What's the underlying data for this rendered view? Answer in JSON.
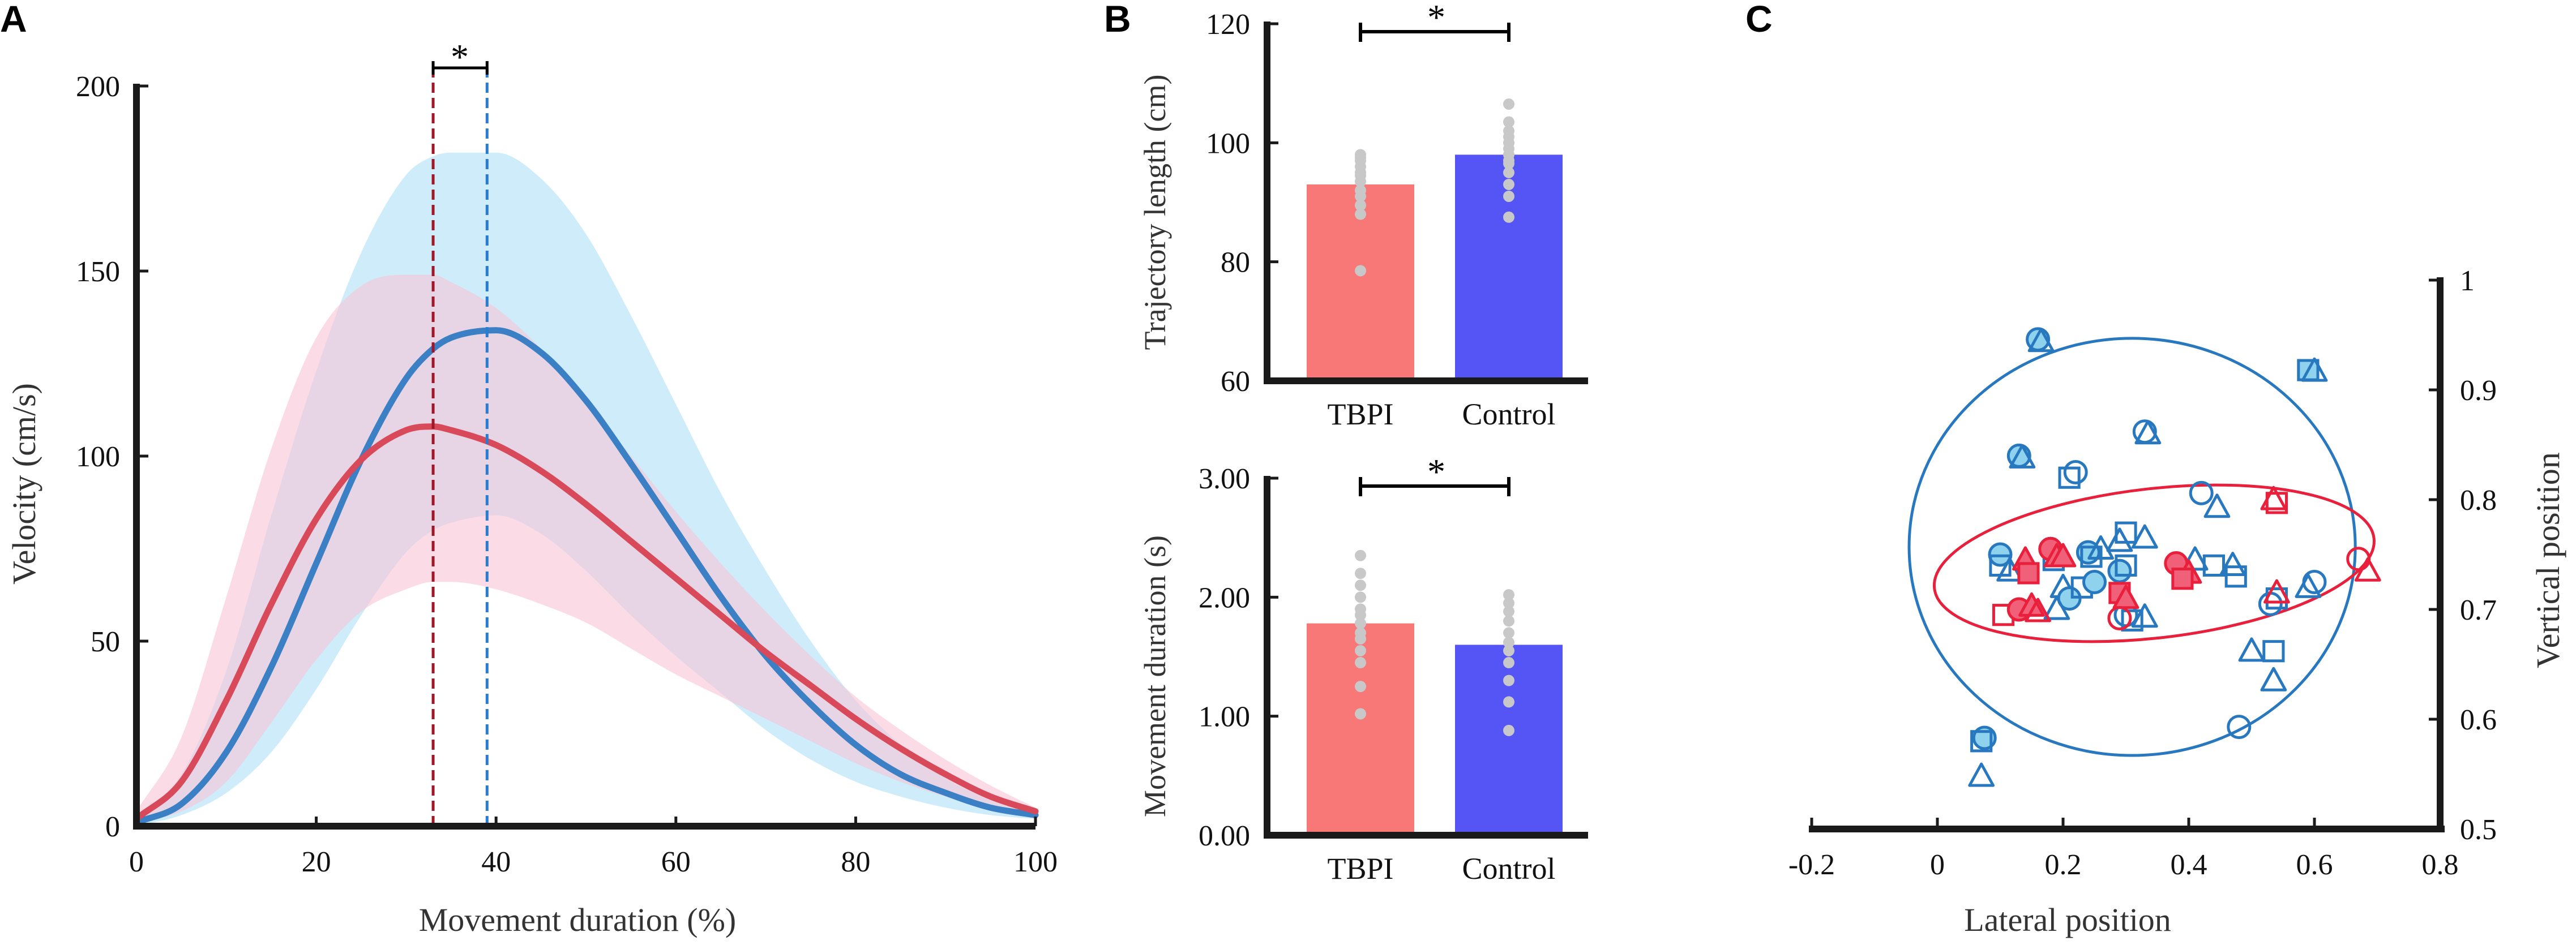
{
  "colors": {
    "tbpi_line": "#d84a5a",
    "control_line": "#3b7fc4",
    "tbpi_band": "#f8c4d6",
    "control_band": "#aee0f5",
    "overlap_band": "#d2c4e6",
    "tbpi_bar": "#f87878",
    "control_bar": "#5555f5",
    "dot": "#c8c8c8",
    "tbpi_marker": "#e8203c",
    "tbpi_fill": "#f06078",
    "control_marker": "#2878c0",
    "control_fill": "#8ed2ee",
    "tbpi_vline": "#a01828",
    "control_vline": "#2a7cd0"
  },
  "chart_data": [
    {
      "panel": "A",
      "type": "line",
      "xlabel": "Movement duration (%)",
      "ylabel": "Velocity (cm/s)",
      "xlim": [
        0,
        100
      ],
      "ylim": [
        0,
        200
      ],
      "xticks": [
        "0",
        "20",
        "40",
        "60",
        "80",
        "100"
      ],
      "yticks": [
        "0",
        "50",
        "100",
        "150",
        "200"
      ],
      "x": [
        0,
        5,
        10,
        15,
        20,
        25,
        30,
        33,
        35,
        40,
        45,
        50,
        55,
        60,
        65,
        70,
        75,
        80,
        85,
        90,
        95,
        100
      ],
      "series": [
        {
          "name": "TBPI",
          "mean": [
            2,
            12,
            34,
            60,
            83,
            99,
            107,
            108,
            107,
            103,
            96,
            87,
            77,
            67,
            57,
            47,
            38,
            29,
            21,
            14,
            8,
            4
          ],
          "upper": [
            4,
            24,
            62,
            102,
            132,
            146,
            149,
            149,
            147,
            140,
            129,
            115,
            100,
            85,
            71,
            58,
            46,
            35,
            26,
            18,
            11,
            5
          ],
          "lower": [
            1,
            4,
            12,
            28,
            45,
            58,
            64,
            66,
            66,
            64,
            60,
            55,
            48,
            41,
            35,
            29,
            23,
            17,
            12,
            8,
            5,
            3
          ]
        },
        {
          "name": "Control",
          "mean": [
            1,
            6,
            20,
            43,
            71,
            99,
            121,
            129,
            132,
            134,
            128,
            115,
            98,
            80,
            62,
            46,
            33,
            22,
            14,
            9,
            5,
            3
          ],
          "upper": [
            3,
            14,
            42,
            84,
            123,
            155,
            176,
            181,
            182,
            182,
            175,
            160,
            138,
            114,
            90,
            69,
            50,
            34,
            22,
            13,
            7,
            3
          ],
          "lower": [
            0,
            3,
            9,
            20,
            37,
            57,
            74,
            80,
            82,
            84,
            79,
            69,
            57,
            46,
            36,
            26,
            18,
            12,
            8,
            5,
            3,
            2
          ]
        }
      ],
      "peaks": {
        "tbpi_x": 33,
        "control_x": 39
      },
      "significance": "*"
    },
    {
      "panel": "B-top",
      "type": "bar",
      "categories": [
        "TBPI",
        "Control"
      ],
      "values": [
        93,
        98
      ],
      "ylabel": "Trajectory length (cm)",
      "ylim": [
        60,
        120
      ],
      "yticks": [
        "60",
        "80",
        "100",
        "120"
      ],
      "points": [
        [
          78.5,
          88,
          89.5,
          91,
          92,
          93.5,
          94.5,
          95,
          96,
          97,
          97.5,
          98
        ],
        [
          87.5,
          91,
          93,
          95,
          96.5,
          97,
          98,
          99,
          100,
          101,
          102,
          103.5,
          106.5
        ]
      ],
      "significance": "*"
    },
    {
      "panel": "B-bottom",
      "type": "bar",
      "categories": [
        "TBPI",
        "Control"
      ],
      "values": [
        1.78,
        1.6
      ],
      "ylabel": "Movement duration (s)",
      "ylim": [
        0,
        3
      ],
      "yticks": [
        "0.00",
        "1.00",
        "2.00",
        "3.00"
      ],
      "points": [
        [
          1.02,
          1.25,
          1.45,
          1.55,
          1.65,
          1.7,
          1.78,
          1.85,
          1.9,
          2.0,
          2.1,
          2.2,
          2.35
        ],
        [
          0.88,
          1.12,
          1.3,
          1.45,
          1.55,
          1.62,
          1.7,
          1.8,
          1.88,
          1.95,
          2.02
        ]
      ],
      "significance": "*"
    },
    {
      "panel": "C",
      "type": "scatter",
      "xlabel": "Lateral position",
      "ylabel": "Vertical position",
      "xlim": [
        -0.2,
        0.8
      ],
      "ylim": [
        0.5,
        1.0
      ],
      "xticks": [
        "-0.2",
        "0",
        "0.2",
        "0.4",
        "0.6",
        "0.8"
      ],
      "yticks": [
        "0.5",
        "0.6",
        "0.7",
        "0.8",
        "0.9",
        "1"
      ],
      "groups": [
        {
          "name": "Control",
          "ellipse": {
            "cx": 0.31,
            "cy": 0.757,
            "rx": 0.355,
            "ry": 0.19,
            "angle": 0
          },
          "points": [
            {
              "x": 0.16,
              "y": 0.946,
              "m": "circle",
              "f": true
            },
            {
              "x": 0.165,
              "y": 0.944,
              "m": "triangle",
              "f": false
            },
            {
              "x": 0.59,
              "y": 0.918,
              "m": "square",
              "f": true
            },
            {
              "x": 0.6,
              "y": 0.917,
              "m": "triangle",
              "f": false
            },
            {
              "x": 0.13,
              "y": 0.84,
              "m": "circle",
              "f": true
            },
            {
              "x": 0.135,
              "y": 0.838,
              "m": "triangle",
              "f": false
            },
            {
              "x": 0.22,
              "y": 0.825,
              "m": "circle",
              "f": false
            },
            {
              "x": 0.21,
              "y": 0.82,
              "m": "square",
              "f": false
            },
            {
              "x": 0.33,
              "y": 0.862,
              "m": "circle",
              "f": false
            },
            {
              "x": 0.335,
              "y": 0.86,
              "m": "triangle",
              "f": false
            },
            {
              "x": 0.42,
              "y": 0.806,
              "m": "circle",
              "f": false
            },
            {
              "x": 0.445,
              "y": 0.793,
              "m": "triangle",
              "f": false
            },
            {
              "x": 0.1,
              "y": 0.75,
              "m": "circle",
              "f": true
            },
            {
              "x": 0.1,
              "y": 0.74,
              "m": "square",
              "f": false
            },
            {
              "x": 0.115,
              "y": 0.735,
              "m": "triangle",
              "f": false
            },
            {
              "x": 0.18,
              "y": 0.755,
              "m": "circle",
              "f": true
            },
            {
              "x": 0.185,
              "y": 0.745,
              "m": "square",
              "f": false
            },
            {
              "x": 0.24,
              "y": 0.752,
              "m": "circle",
              "f": true
            },
            {
              "x": 0.245,
              "y": 0.748,
              "m": "square",
              "f": false
            },
            {
              "x": 0.26,
              "y": 0.755,
              "m": "triangle",
              "f": false
            },
            {
              "x": 0.29,
              "y": 0.762,
              "m": "triangle",
              "f": false
            },
            {
              "x": 0.3,
              "y": 0.77,
              "m": "square",
              "f": false
            },
            {
              "x": 0.33,
              "y": 0.765,
              "m": "triangle",
              "f": false
            },
            {
              "x": 0.29,
              "y": 0.735,
              "m": "circle",
              "f": true
            },
            {
              "x": 0.3,
              "y": 0.74,
              "m": "square",
              "f": false
            },
            {
              "x": 0.2,
              "y": 0.72,
              "m": "triangle",
              "f": false
            },
            {
              "x": 0.21,
              "y": 0.71,
              "m": "circle",
              "f": true
            },
            {
              "x": 0.23,
              "y": 0.72,
              "m": "square",
              "f": false
            },
            {
              "x": 0.25,
              "y": 0.725,
              "m": "circle",
              "f": true
            },
            {
              "x": 0.19,
              "y": 0.7,
              "m": "triangle",
              "f": false
            },
            {
              "x": 0.3,
              "y": 0.695,
              "m": "circle",
              "f": false
            },
            {
              "x": 0.31,
              "y": 0.69,
              "m": "square",
              "f": false
            },
            {
              "x": 0.33,
              "y": 0.693,
              "m": "triangle",
              "f": false
            },
            {
              "x": 0.41,
              "y": 0.745,
              "m": "triangle",
              "f": false
            },
            {
              "x": 0.44,
              "y": 0.74,
              "m": "square",
              "f": false
            },
            {
              "x": 0.47,
              "y": 0.74,
              "m": "triangle",
              "f": false
            },
            {
              "x": 0.475,
              "y": 0.73,
              "m": "square",
              "f": false
            },
            {
              "x": 0.6,
              "y": 0.725,
              "m": "circle",
              "f": false
            },
            {
              "x": 0.59,
              "y": 0.72,
              "m": "triangle",
              "f": false
            },
            {
              "x": 0.53,
              "y": 0.705,
              "m": "circle",
              "f": false
            },
            {
              "x": 0.54,
              "y": 0.71,
              "m": "square",
              "f": false
            },
            {
              "x": 0.5,
              "y": 0.662,
              "m": "triangle",
              "f": false
            },
            {
              "x": 0.535,
              "y": 0.662,
              "m": "square",
              "f": false
            },
            {
              "x": 0.535,
              "y": 0.635,
              "m": "triangle",
              "f": false
            },
            {
              "x": 0.48,
              "y": 0.593,
              "m": "circle",
              "f": false
            },
            {
              "x": 0.075,
              "y": 0.583,
              "m": "circle",
              "f": true
            },
            {
              "x": 0.07,
              "y": 0.58,
              "m": "square",
              "f": false
            },
            {
              "x": 0.07,
              "y": 0.548,
              "m": "triangle",
              "f": false
            }
          ]
        },
        {
          "name": "TBPI",
          "ellipse": {
            "cx": 0.345,
            "cy": 0.742,
            "rx": 0.352,
            "ry": 0.068,
            "angle": 6.5
          },
          "points": [
            {
              "x": 0.18,
              "y": 0.755,
              "m": "circle",
              "f": true
            },
            {
              "x": 0.19,
              "y": 0.748,
              "m": "triangle",
              "f": true
            },
            {
              "x": 0.14,
              "y": 0.745,
              "m": "triangle",
              "f": true
            },
            {
              "x": 0.145,
              "y": 0.733,
              "m": "square",
              "f": true
            },
            {
              "x": 0.2,
              "y": 0.748,
              "m": "triangle",
              "f": true
            },
            {
              "x": 0.105,
              "y": 0.695,
              "m": "square",
              "f": false
            },
            {
              "x": 0.13,
              "y": 0.7,
              "m": "circle",
              "f": true
            },
            {
              "x": 0.15,
              "y": 0.703,
              "m": "triangle",
              "f": true
            },
            {
              "x": 0.16,
              "y": 0.698,
              "m": "triangle",
              "f": false
            },
            {
              "x": 0.29,
              "y": 0.715,
              "m": "square",
              "f": true
            },
            {
              "x": 0.3,
              "y": 0.71,
              "m": "triangle",
              "f": true
            },
            {
              "x": 0.29,
              "y": 0.692,
              "m": "circle",
              "f": false
            },
            {
              "x": 0.38,
              "y": 0.742,
              "m": "circle",
              "f": true
            },
            {
              "x": 0.4,
              "y": 0.733,
              "m": "triangle",
              "f": true
            },
            {
              "x": 0.39,
              "y": 0.728,
              "m": "square",
              "f": true
            },
            {
              "x": 0.535,
              "y": 0.8,
              "m": "triangle",
              "f": false
            },
            {
              "x": 0.54,
              "y": 0.797,
              "m": "square",
              "f": false
            },
            {
              "x": 0.54,
              "y": 0.715,
              "m": "triangle",
              "f": false
            },
            {
              "x": 0.67,
              "y": 0.746,
              "m": "circle",
              "f": false
            },
            {
              "x": 0.685,
              "y": 0.735,
              "m": "triangle",
              "f": false
            }
          ]
        }
      ]
    }
  ],
  "labels": {
    "panel_a": "A",
    "panel_b": "B",
    "panel_c": "C",
    "a_xlabel": "Movement duration (%)",
    "a_ylabel": "Velocity (cm/s)",
    "a_star": "*",
    "b_top_ylabel": "Trajectory length (cm)",
    "b_bottom_ylabel": "Movement duration (s)",
    "b_top_star": "*",
    "b_bottom_star": "*",
    "b_cat_tbpi": "TBPI",
    "b_cat_control": "Control",
    "c_xlabel": "Lateral position",
    "c_ylabel": "Vertical position"
  }
}
